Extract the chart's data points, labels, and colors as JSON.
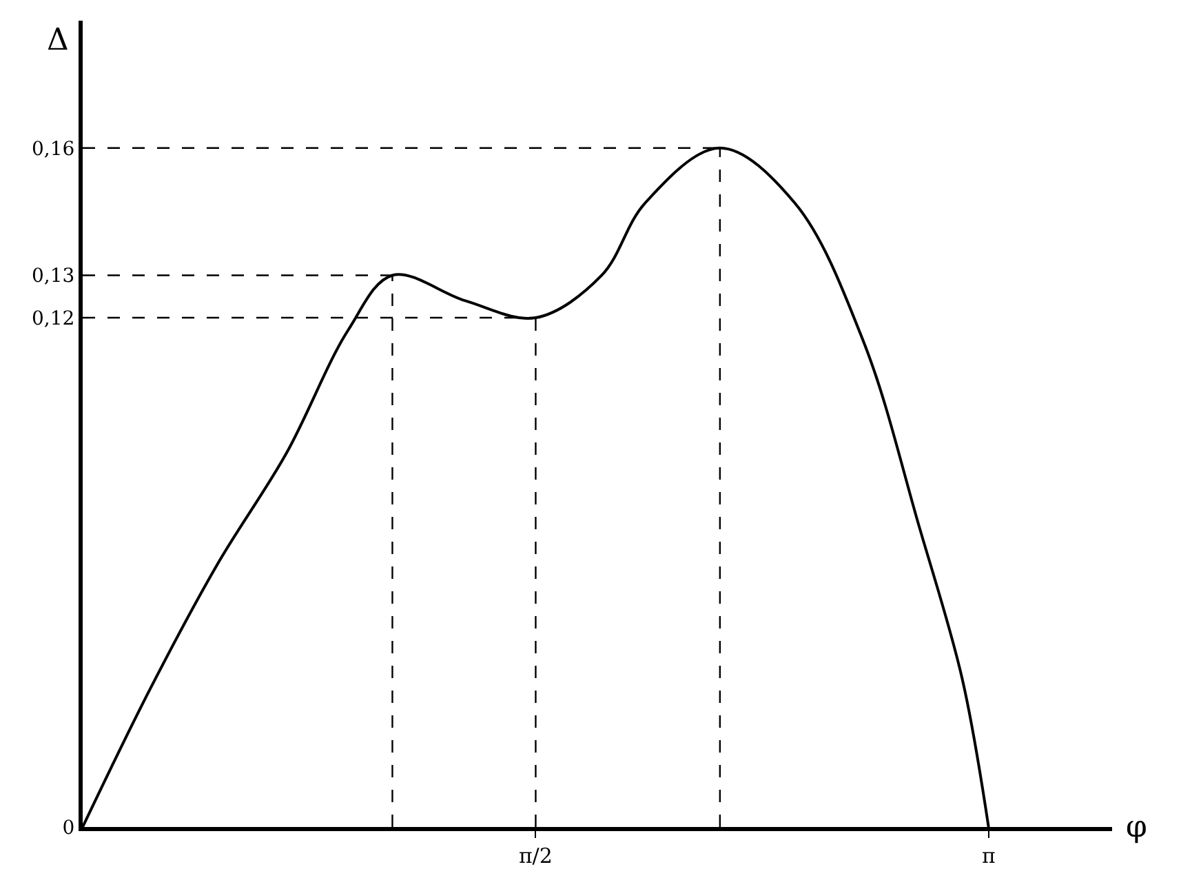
{
  "chart_data": {
    "type": "line",
    "xlabel": "φ",
    "ylabel": "Δ",
    "x": [
      0,
      0.23,
      0.468,
      0.706,
      0.92,
      1.074,
      1.327,
      1.571,
      1.8,
      1.95,
      2.21,
      2.47,
      2.71,
      2.9,
      3.05,
      3.1416
    ],
    "series": [
      {
        "color": "#000000",
        "values": [
          0,
          0.032,
          0.062,
          0.088,
          0.117,
          0.13,
          0.124,
          0.12,
          0.13,
          0.147,
          0.16,
          0.147,
          0.114,
          0.071,
          0.035,
          0
        ]
      }
    ],
    "xlim": [
      0,
      3.57
    ],
    "ylim": [
      0,
      0.19
    ],
    "xticks": [
      {
        "value": 1.5708,
        "label": "π/2"
      },
      {
        "value": 3.1416,
        "label": "π"
      }
    ],
    "yticks": [
      {
        "value": 0,
        "label": "0"
      },
      {
        "value": 0.12,
        "label": "0,12"
      },
      {
        "value": 0.13,
        "label": "0,13"
      },
      {
        "value": 0.16,
        "label": "0,16"
      }
    ],
    "ref_lines": [
      {
        "axis": "y",
        "value": 0.16,
        "line_style": "dashed"
      },
      {
        "axis": "y",
        "value": 0.13,
        "line_style": "dashed"
      },
      {
        "axis": "y",
        "value": 0.12,
        "line_style": "dashed"
      },
      {
        "axis": "x",
        "value": 1.074,
        "line_style": "dashed"
      },
      {
        "axis": "x",
        "value": 1.571,
        "line_style": "dashed"
      },
      {
        "axis": "x",
        "value": 2.21,
        "line_style": "dashed"
      }
    ],
    "marker": "none",
    "line_style": "solid"
  }
}
